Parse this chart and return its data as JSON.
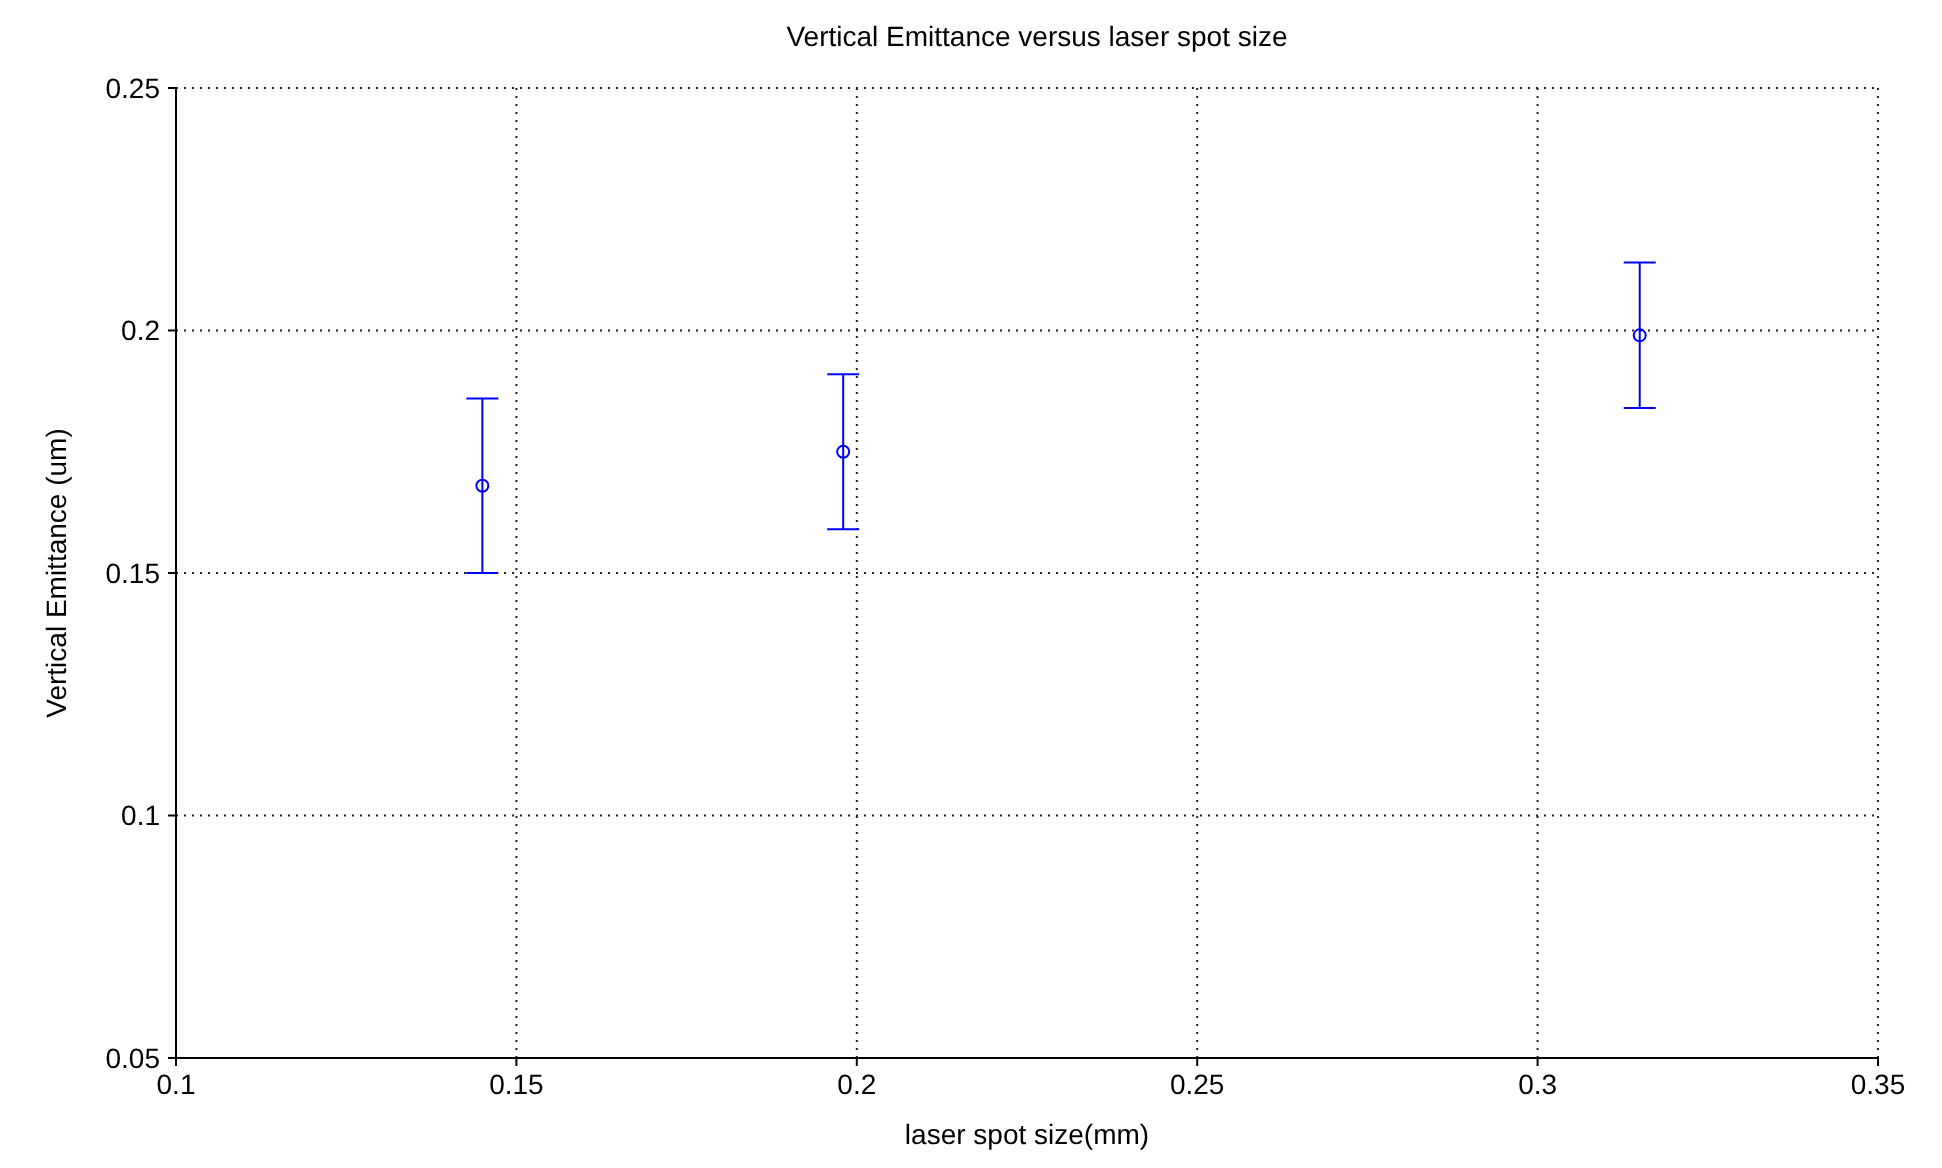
{
  "chart_data": {
    "type": "scatter",
    "title": "Vertical Emittance versus laser spot size",
    "xlabel": "laser spot size(mm)",
    "ylabel": "Vertical Emittance (um)",
    "x": [
      0.145,
      0.198,
      0.315
    ],
    "series": [
      {
        "color": "#0000ff",
        "values": [
          0.168,
          0.175,
          0.199
        ],
        "errors": [
          0.018,
          0.016,
          0.015
        ]
      }
    ],
    "xlim": [
      0.1,
      0.35
    ],
    "xticks": [
      0.1,
      0.15,
      0.2,
      0.25,
      0.3,
      0.35
    ],
    "ylim": [
      0.05,
      0.25
    ],
    "yticks": [
      0.05,
      0.1,
      0.15,
      0.2,
      0.25
    ],
    "grid": true,
    "marker": "circle"
  }
}
